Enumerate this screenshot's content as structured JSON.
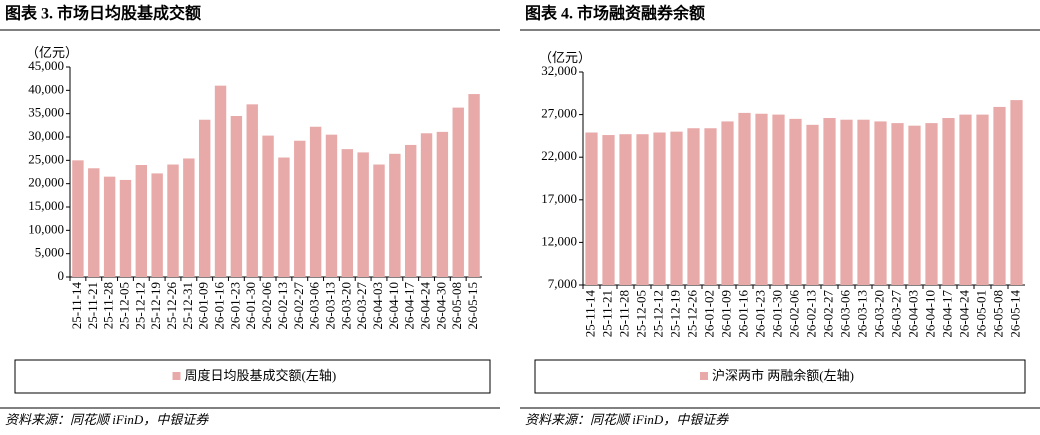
{
  "chart_data": [
    {
      "type": "bar",
      "title": "图表 3. 市场日均股基成交额",
      "y_label": "（亿元）",
      "categories": [
        "25-11-14",
        "25-11-21",
        "25-11-28",
        "25-12-05",
        "25-12-12",
        "25-12-19",
        "25-12-26",
        "25-12-31",
        "26-01-09",
        "26-01-16",
        "26-01-23",
        "26-01-30",
        "26-02-06",
        "26-02-13",
        "26-02-27",
        "26-03-06",
        "26-03-13",
        "26-03-20",
        "26-03-27",
        "26-04-03",
        "26-04-10",
        "26-04-17",
        "26-04-24",
        "26-04-30",
        "26-05-08",
        "26-05-15"
      ],
      "series": [
        {
          "name": "周度日均股基成交额(左轴)",
          "color": "#e8a9a9",
          "values": [
            25000,
            23300,
            21500,
            20800,
            24000,
            22200,
            24100,
            25400,
            33700,
            41000,
            34500,
            37000,
            30300,
            25600,
            29200,
            32200,
            30500,
            27400,
            26700,
            24100,
            26400,
            28300,
            30800,
            31100,
            36300,
            39200
          ]
        }
      ],
      "ylim": [
        0,
        45000
      ],
      "yticks": [
        0,
        {
          "value": 5000,
          "label": "5,000"
        },
        {
          "value": 10000,
          "label": "10,000"
        },
        {
          "value": 15000,
          "label": "15,000"
        },
        {
          "value": 20000,
          "label": "20,000"
        },
        {
          "value": 25000,
          "label": "25,000"
        },
        {
          "value": 30000,
          "label": "30,000"
        },
        {
          "value": 35000,
          "label": "35,000"
        },
        {
          "value": 40000,
          "label": "40,000"
        },
        {
          "value": 45000,
          "label": "45,000"
        }
      ],
      "source": "资料来源：同花顺 iFinD，中银证券"
    },
    {
      "type": "bar",
      "title": "图表 4. 市场融资融券余额",
      "y_label": "（亿元）",
      "categories": [
        "25-11-14",
        "25-11-21",
        "25-11-28",
        "25-12-05",
        "25-12-12",
        "25-12-19",
        "25-12-26",
        "26-01-02",
        "26-01-09",
        "26-01-16",
        "26-01-23",
        "26-01-30",
        "26-02-06",
        "26-02-13",
        "26-02-27",
        "26-03-06",
        "26-03-13",
        "26-03-20",
        "26-03-27",
        "26-04-03",
        "26-04-10",
        "26-04-17",
        "26-04-24",
        "26-05-01",
        "26-05-08",
        "26-05-14"
      ],
      "series": [
        {
          "name": "沪深两市 两融余额(左轴)",
          "color": "#e8a9a9",
          "values": [
            24900,
            24600,
            24700,
            24700,
            24900,
            25000,
            25400,
            25400,
            26200,
            27200,
            27100,
            27000,
            26500,
            25800,
            26600,
            26400,
            26400,
            26200,
            26000,
            25700,
            26000,
            26600,
            27000,
            27000,
            27900,
            28700
          ]
        }
      ],
      "ylim": [
        7000,
        32000
      ],
      "yticks": [
        {
          "value": 7000,
          "label": "7,000"
        },
        {
          "value": 12000,
          "label": "12,000"
        },
        {
          "value": 17000,
          "label": "17,000"
        },
        {
          "value": 22000,
          "label": "22,000"
        },
        {
          "value": 27000,
          "label": "27,000"
        },
        {
          "value": 32000,
          "label": "32,000"
        }
      ],
      "source": "资料来源：同花顺 iFinD，中银证券"
    }
  ]
}
